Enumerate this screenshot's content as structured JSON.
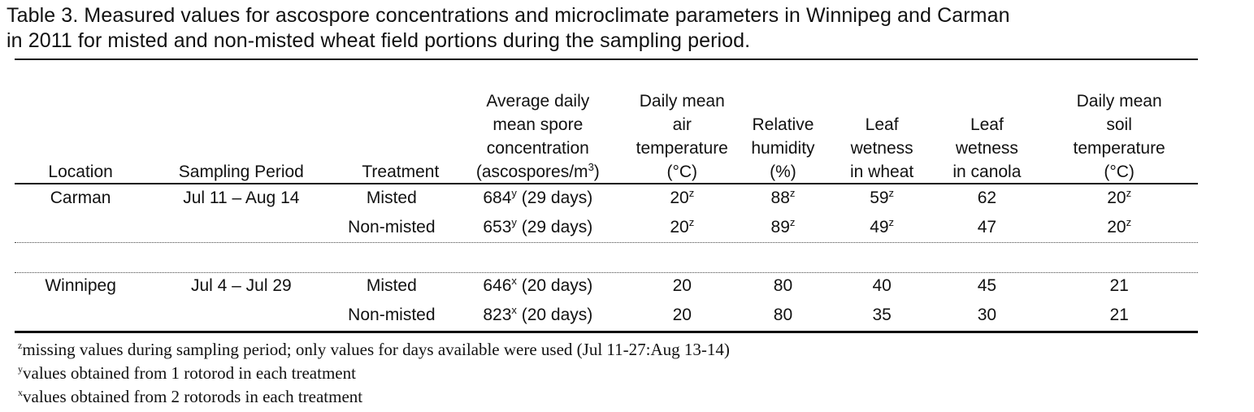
{
  "caption": {
    "line1": "Table 3. Measured values for ascospore concentrations and microclimate parameters in Winnipeg and Carman",
    "line2": "in 2011 for misted and non-misted wheat field portions during the sampling period."
  },
  "headers": {
    "location": "Location",
    "sampling_period": "Sampling Period",
    "treatment": "Treatment",
    "spore_l1": "Average daily",
    "spore_l2": "mean spore",
    "spore_l3": "concentration",
    "spore_l4": "(ascospores/m",
    "spore_sup": "3",
    "spore_close": ")",
    "air_l1": "Daily mean",
    "air_l2": "air",
    "air_l3": "temperature",
    "air_l4": "(°C)",
    "rh_l1": "Relative",
    "rh_l2": "humidity",
    "rh_l3": "(%)",
    "lw_l1": "Leaf",
    "lw_l2": "wetness",
    "lw_l3": "in wheat",
    "lc_l1": "Leaf",
    "lc_l2": "wetness",
    "lc_l3": "in canola",
    "soil_l1": "Daily mean",
    "soil_l2": "soil",
    "soil_l3": "temperature",
    "soil_l4": "(°C)"
  },
  "rows": [
    {
      "location": "Carman",
      "period": "Jul 11 – Aug 14",
      "treatment": "Misted",
      "spore": "684",
      "spore_sup": "y",
      "spore_days": "(29 days)",
      "air": "20",
      "air_sup": "z",
      "rh": "88",
      "rh_sup": "z",
      "lw": "59",
      "lw_sup": "z",
      "lc": "62",
      "soil": "20",
      "soil_sup": "z"
    },
    {
      "location": "",
      "period": "",
      "treatment": "Non-misted",
      "spore": "653",
      "spore_sup": "y",
      "spore_days": "(29 days)",
      "air": "20",
      "air_sup": "z",
      "rh": "89",
      "rh_sup": "z",
      "lw": "49",
      "lw_sup": "z",
      "lc": "47",
      "soil": "20",
      "soil_sup": "z"
    },
    {
      "location": "Winnipeg",
      "period": "Jul 4 – Jul 29",
      "treatment": "Misted",
      "spore": "646",
      "spore_sup": "x",
      "spore_days": "(20 days)",
      "air": "20",
      "air_sup": "",
      "rh": "80",
      "rh_sup": "",
      "lw": "40",
      "lw_sup": "",
      "lc": "45",
      "soil": "21",
      "soil_sup": ""
    },
    {
      "location": "",
      "period": "",
      "treatment": "Non-misted",
      "spore": "823",
      "spore_sup": "x",
      "spore_days": "(20 days)",
      "air": "20",
      "air_sup": "",
      "rh": "80",
      "rh_sup": "",
      "lw": "35",
      "lw_sup": "",
      "lc": "30",
      "soil": "21",
      "soil_sup": ""
    }
  ],
  "footnotes": [
    {
      "mark": "z",
      "text": "missing values during sampling period; only values for days available were used (Jul 11-27:Aug 13-14)"
    },
    {
      "mark": "y",
      "text": "values obtained from 1 rotorod in each treatment"
    },
    {
      "mark": "x",
      "text": "values obtained from 2 rotorods in each treatment"
    }
  ]
}
